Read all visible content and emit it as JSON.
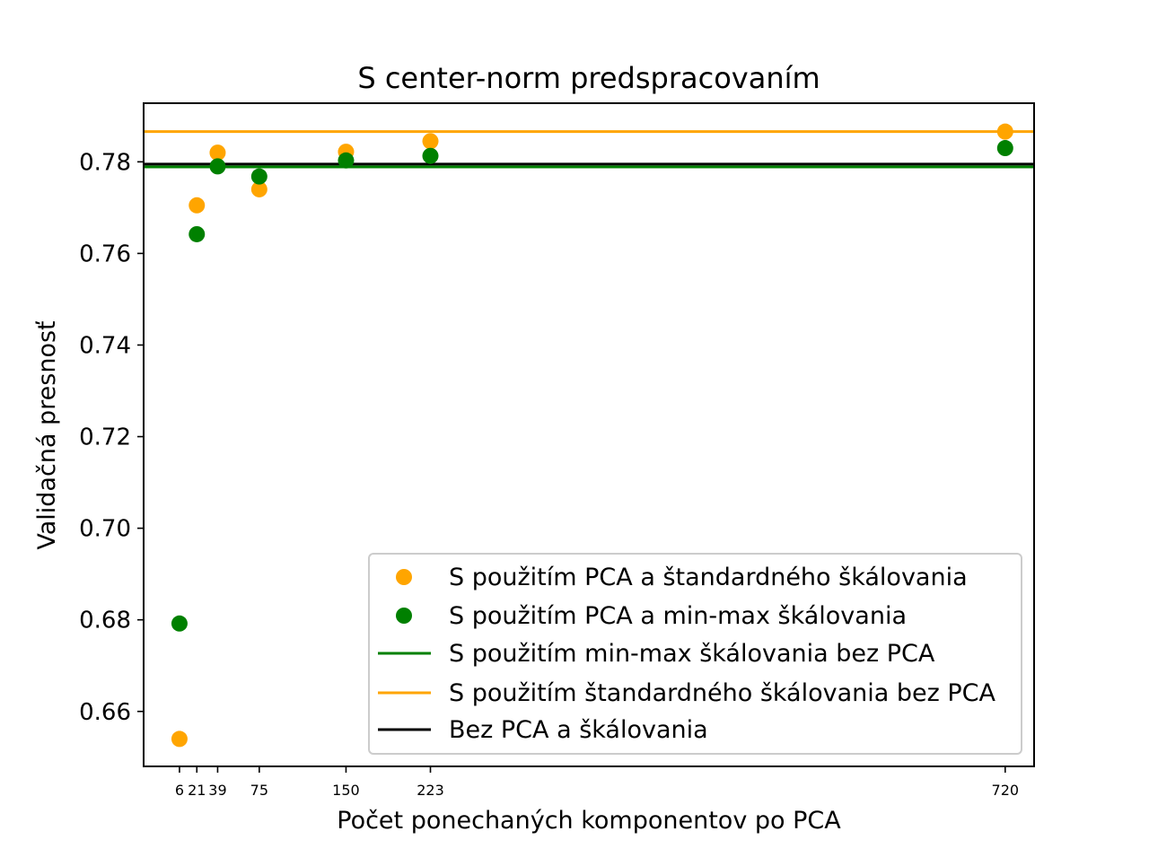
{
  "chart_data": {
    "type": "scatter",
    "title": "S center-norm predspracovaním",
    "xlabel": "Počet ponechaných komponentov po PCA",
    "ylabel": "Validačná presnosť",
    "xlim": [
      -25,
      745
    ],
    "ylim": [
      0.648,
      0.7928
    ],
    "x_ticks": [
      6,
      21,
      39,
      75,
      150,
      223,
      720
    ],
    "y_ticks": [
      0.66,
      0.68,
      0.7,
      0.72,
      0.74,
      0.76,
      0.78
    ],
    "y_tick_labels": [
      "0.66",
      "0.68",
      "0.70",
      "0.72",
      "0.74",
      "0.76",
      "0.78"
    ],
    "grid": false,
    "legend_position": "lower-right",
    "series": [
      {
        "name": "S použitím PCA a štandardného škálovania",
        "kind": "scatter",
        "color": "#FFA500",
        "x": [
          6,
          21,
          39,
          75,
          150,
          223,
          720
        ],
        "y": [
          0.654,
          0.7705,
          0.782,
          0.774,
          0.7822,
          0.7845,
          0.7866
        ]
      },
      {
        "name": "S použitím PCA a min-max škálovania",
        "kind": "scatter",
        "color": "#008000",
        "x": [
          6,
          21,
          39,
          75,
          150,
          223,
          720
        ],
        "y": [
          0.6792,
          0.7642,
          0.779,
          0.7768,
          0.7803,
          0.7813,
          0.783
        ]
      },
      {
        "name": "S použitím min-max škálovania bez PCA",
        "kind": "hline",
        "color": "#008000",
        "y": 0.7789
      },
      {
        "name": "S použitím štandardného škálovania bez PCA",
        "kind": "hline",
        "color": "#FFA500",
        "y": 0.7866
      },
      {
        "name": "Bez PCA a škálovania",
        "kind": "hline",
        "color": "#000000",
        "y": 0.7795
      }
    ]
  }
}
